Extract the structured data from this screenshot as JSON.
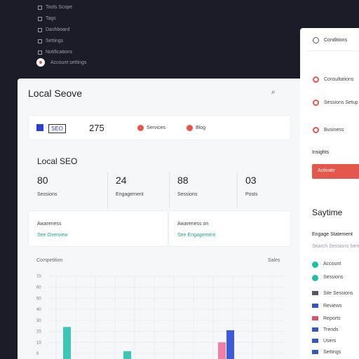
{
  "sidebar": {
    "items": [
      "Tools Scope",
      "Tags",
      "Dashboard",
      "Settings",
      "Notifications"
    ],
    "user": "Account settings"
  },
  "main": {
    "title": "Local Seove",
    "summary": {
      "tag": "SEO",
      "count": "275",
      "links": [
        "Services",
        "Blog"
      ]
    },
    "section_title": "Local SEO",
    "stats": [
      {
        "value": "80",
        "label": "Sessions"
      },
      {
        "value": "24",
        "label": "Engagement"
      },
      {
        "value": "88",
        "label": "Sessions"
      },
      {
        "value": "03",
        "label": "Posts"
      }
    ],
    "cards": [
      {
        "title": "Awareness",
        "link": "See Overview"
      },
      {
        "title": "Awareness on",
        "link": "See Engagement"
      }
    ],
    "chart": {
      "type": "bar",
      "title": "Competition",
      "legend": "Sales",
      "ylim": [
        0,
        70
      ],
      "yticks": [
        70,
        60,
        50,
        40,
        30,
        20,
        10,
        0
      ],
      "values": [
        24,
        2,
        10,
        21
      ],
      "colors": [
        "#3cc7b4",
        "#3cc7b4",
        "#f07fa5",
        "#3d5bd9"
      ]
    }
  },
  "panel": {
    "header": "Conditions",
    "items": [
      "Consultations",
      "Sessions Setup",
      "Business"
    ],
    "section": "Insights",
    "button": "Activate",
    "title": "Saytime",
    "subtitle": "Engage Statement",
    "search": "Search Sessions here",
    "list": [
      "Account",
      "Sessions",
      "Site Sessions",
      "Reviews",
      "Reports",
      "Trends",
      "Users",
      "Settings"
    ]
  }
}
